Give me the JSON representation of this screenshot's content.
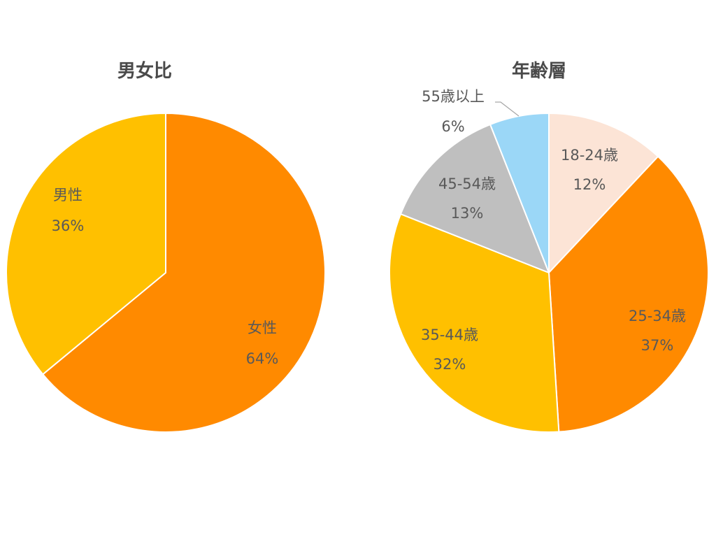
{
  "chart_data": [
    {
      "type": "pie",
      "title": "男女比",
      "slices": [
        {
          "label": "女性",
          "value": 64,
          "display": "64%",
          "color": "#FF8A00"
        },
        {
          "label": "男性",
          "value": 36,
          "display": "36%",
          "color": "#FFC000"
        }
      ]
    },
    {
      "type": "pie",
      "title": "年齢層",
      "slices": [
        {
          "label": "18-24歳",
          "value": 12,
          "display": "12%",
          "color": "#FCE4D6"
        },
        {
          "label": "25-34歳",
          "value": 37,
          "display": "37%",
          "color": "#FF8A00"
        },
        {
          "label": "35-44歳",
          "value": 32,
          "display": "32%",
          "color": "#FFC000"
        },
        {
          "label": "45-54歳",
          "value": 13,
          "display": "13%",
          "color": "#BFBFBF"
        },
        {
          "label": "55歳以上",
          "value": 6,
          "display": "6%",
          "color": "#9BD7F7"
        }
      ]
    }
  ]
}
